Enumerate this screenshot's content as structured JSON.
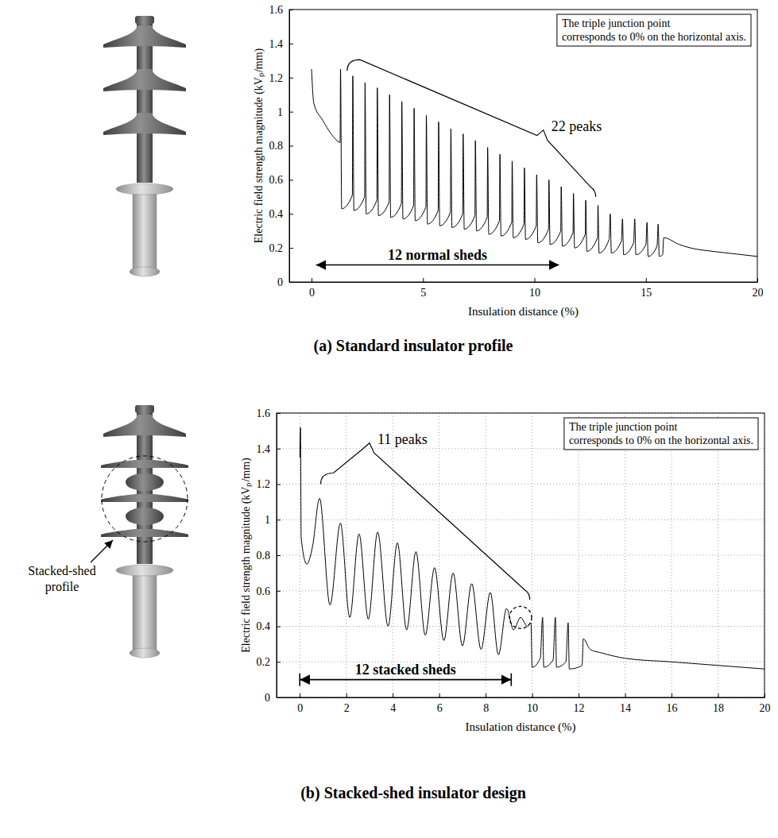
{
  "chart_data": [
    {
      "type": "line",
      "caption": "(a) Standard insulator profile",
      "x_label": "Insulation distance (%)",
      "y_label": "Electric field strength magnitude (kVₚ/mm)",
      "note": [
        "The triple junction point",
        "corresponds to 0% on the horizontal axis."
      ],
      "bracket_label": "22 peaks",
      "span_label": "12 normal sheds",
      "xlim": [
        -1,
        20
      ],
      "xticks": [
        0,
        5,
        10,
        15,
        20
      ],
      "ylim": [
        0,
        1.6
      ],
      "yticks": [
        0,
        0.2,
        0.4,
        0.6,
        0.8,
        1,
        1.2,
        1.4,
        1.6
      ],
      "grid": false,
      "color": "#000000",
      "x": [
        0,
        0.1,
        0.5,
        1.0,
        1.28,
        1.3,
        1.35,
        1.83,
        1.85,
        1.9,
        2.38,
        2.4,
        2.45,
        2.93,
        2.95,
        3.0,
        3.48,
        3.5,
        3.55,
        4.03,
        4.05,
        4.1,
        4.58,
        4.6,
        4.65,
        5.13,
        5.15,
        5.2,
        5.68,
        5.7,
        5.75,
        6.23,
        6.25,
        6.3,
        6.78,
        6.8,
        6.85,
        7.33,
        7.35,
        7.4,
        7.88,
        7.9,
        7.95,
        8.43,
        8.45,
        8.5,
        8.98,
        9.0,
        9.05,
        9.53,
        9.55,
        9.6,
        10.08,
        10.1,
        10.15,
        10.63,
        10.65,
        10.7,
        11.18,
        11.2,
        11.25,
        11.73,
        11.75,
        11.8,
        12.28,
        12.3,
        12.35,
        12.83,
        12.85,
        12.9,
        13.35,
        13.4,
        13.45,
        13.9,
        13.95,
        14.0,
        14.45,
        14.5,
        14.55,
        15.0,
        15.05,
        15.1,
        15.5,
        15.55,
        15.6,
        15.75,
        15.8,
        16.5,
        17,
        18,
        19,
        20
      ],
      "values": [
        1.25,
        1.05,
        0.95,
        0.85,
        0.82,
        1.25,
        0.43,
        0.51,
        1.21,
        0.42,
        0.5,
        1.17,
        0.4,
        0.48,
        1.14,
        0.39,
        0.47,
        1.1,
        0.38,
        0.46,
        1.06,
        0.37,
        0.45,
        1.02,
        0.36,
        0.44,
        0.98,
        0.34,
        0.42,
        0.94,
        0.33,
        0.41,
        0.9,
        0.32,
        0.4,
        0.87,
        0.31,
        0.39,
        0.83,
        0.3,
        0.38,
        0.79,
        0.28,
        0.36,
        0.75,
        0.27,
        0.35,
        0.71,
        0.26,
        0.34,
        0.67,
        0.25,
        0.33,
        0.63,
        0.23,
        0.31,
        0.6,
        0.22,
        0.3,
        0.56,
        0.21,
        0.29,
        0.52,
        0.2,
        0.28,
        0.48,
        0.18,
        0.26,
        0.45,
        0.17,
        0.25,
        0.4,
        0.17,
        0.24,
        0.37,
        0.16,
        0.23,
        0.37,
        0.16,
        0.22,
        0.35,
        0.15,
        0.21,
        0.34,
        0.15,
        0.16,
        0.26,
        0.22,
        0.2,
        0.18,
        0.165,
        0.15
      ]
    },
    {
      "type": "line",
      "caption": "(b) Stacked-shed insulator design",
      "x_label": "Insulation distance (%)",
      "y_label": "Electric field strength magnitude (kVₚ/mm)",
      "note": [
        "The triple junction point",
        "corresponds to 0% on the horizontal axis."
      ],
      "bracket_label": "11 peaks",
      "span_label": "12 stacked sheds",
      "image_label": "Stacked-shed profile",
      "xlim": [
        -1,
        20
      ],
      "xticks": [
        0,
        2,
        4,
        6,
        8,
        10,
        12,
        14,
        16,
        18,
        20
      ],
      "ylim": [
        0,
        1.6
      ],
      "yticks": [
        0,
        0.2,
        0.4,
        0.6,
        0.8,
        1,
        1.2,
        1.4,
        1.6
      ],
      "grid": true,
      "color": "#000000",
      "x": [
        0,
        0.03,
        0.06,
        0.3,
        0.55,
        0.85,
        1.3,
        1.75,
        2.15,
        2.55,
        2.95,
        3.35,
        3.8,
        4.2,
        4.6,
        5.0,
        5.4,
        5.8,
        6.2,
        6.6,
        7.0,
        7.4,
        7.8,
        8.2,
        8.55,
        8.9,
        9.2,
        9.5,
        9.8,
        9.95,
        10.0,
        10.35,
        10.45,
        10.5,
        10.9,
        11.0,
        11.05,
        11.45,
        11.55,
        11.6,
        12.15,
        12.2,
        12.5,
        13,
        14,
        16,
        18,
        20
      ],
      "values": [
        1.35,
        1.52,
        0.9,
        0.75,
        0.85,
        1.12,
        0.52,
        0.98,
        0.45,
        0.92,
        0.44,
        0.93,
        0.4,
        0.87,
        0.38,
        0.82,
        0.35,
        0.73,
        0.32,
        0.7,
        0.29,
        0.64,
        0.27,
        0.59,
        0.24,
        0.5,
        0.38,
        0.45,
        0.4,
        0.42,
        0.17,
        0.22,
        0.45,
        0.17,
        0.21,
        0.45,
        0.17,
        0.2,
        0.42,
        0.16,
        0.18,
        0.33,
        0.27,
        0.25,
        0.22,
        0.2,
        0.18,
        0.16
      ]
    }
  ]
}
